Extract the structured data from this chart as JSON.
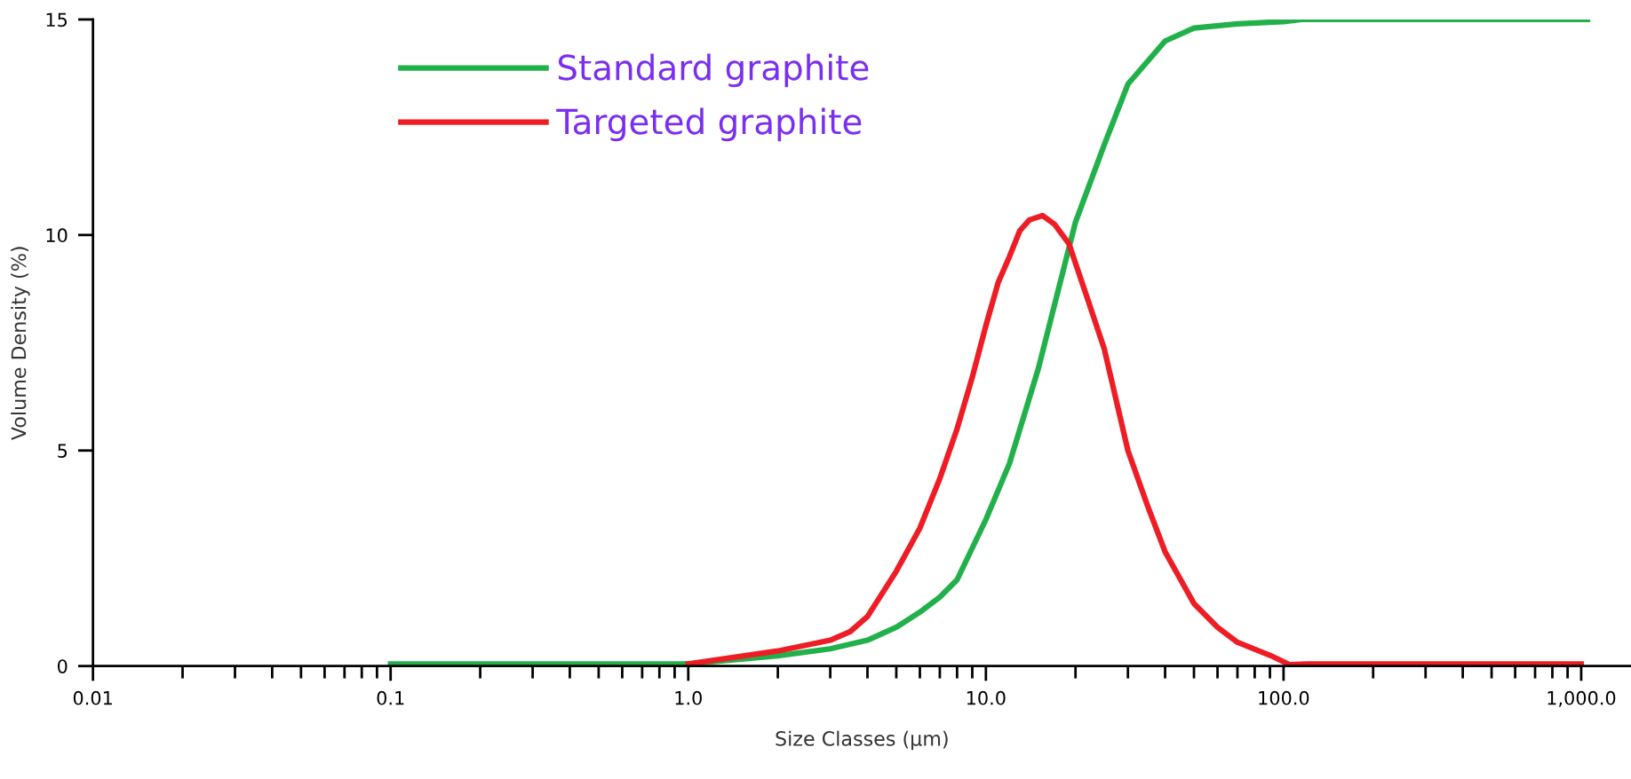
{
  "chart_data": {
    "type": "line",
    "xlabel": "Size Classes (µm)",
    "ylabel": "Volume Density (%)",
    "log": "x",
    "xlim": [
      0.01,
      1470
    ],
    "xticks": [
      {
        "value": 0.01,
        "label": "0.01"
      },
      {
        "value": 0.1,
        "label": "0.1"
      },
      {
        "value": 1,
        "label": "1.0"
      },
      {
        "value": 10,
        "label": "10.0"
      },
      {
        "value": 100,
        "label": "100.0"
      },
      {
        "value": 1000,
        "label": "1,000.0"
      }
    ],
    "ylim": [
      0,
      15
    ],
    "yticks": [
      0,
      5,
      10,
      15
    ],
    "grid": false,
    "legend": "top left",
    "marker": "none",
    "line_style": "solid",
    "series": [
      {
        "name": "Standard graphite",
        "color": "#22b04b",
        "x": [
          0.1,
          0.3,
          1,
          2,
          3,
          4,
          5,
          6,
          7,
          8,
          10,
          12,
          15,
          20,
          25,
          30,
          40,
          50,
          70,
          100,
          115,
          1050
        ],
        "values": [
          0.05,
          0.05,
          0.05,
          0.24,
          0.4,
          0.6,
          0.9,
          1.25,
          1.6,
          2.0,
          3.4,
          4.7,
          6.9,
          10.3,
          12.1,
          13.5,
          14.5,
          14.8,
          14.9,
          14.95,
          15,
          15
        ]
      },
      {
        "name": "Targeted graphite",
        "color": "#ee1c24",
        "x": [
          1,
          2,
          3,
          3.5,
          4,
          5,
          6,
          7,
          8,
          9,
          10,
          11,
          12,
          13,
          14,
          15.5,
          17,
          19,
          22,
          25,
          30,
          35,
          40,
          50,
          60,
          70,
          90,
          105,
          120,
          1000
        ],
        "values": [
          0.05,
          0.35,
          0.6,
          0.8,
          1.15,
          2.2,
          3.2,
          4.35,
          5.5,
          6.7,
          7.9,
          8.9,
          9.5,
          10.1,
          10.35,
          10.45,
          10.25,
          9.8,
          8.5,
          7.35,
          5.0,
          3.7,
          2.65,
          1.45,
          0.9,
          0.55,
          0.25,
          0.03,
          0.05,
          0.05
        ]
      }
    ]
  }
}
